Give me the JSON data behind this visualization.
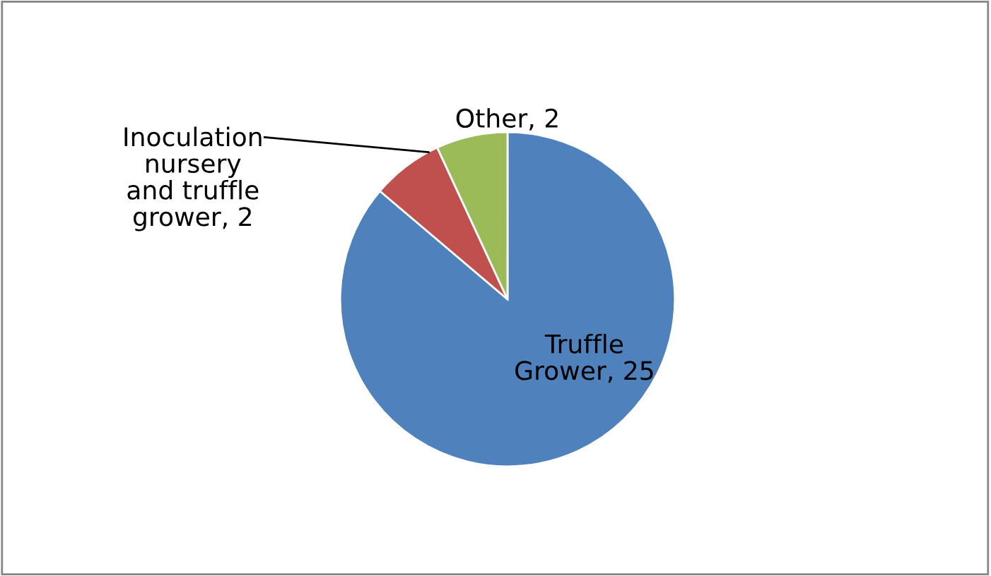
{
  "chart_data": {
    "type": "pie",
    "categories": [
      "Truffle\nGrower",
      "Inoculation\nnursery\nand truffle\ngrower",
      "Other"
    ],
    "values": [
      25,
      2,
      2
    ],
    "colors": [
      "#4f81bd",
      "#c0504d",
      "#9bbb59"
    ],
    "value_labels": [
      ", 25",
      ", 2",
      ", 2"
    ]
  }
}
